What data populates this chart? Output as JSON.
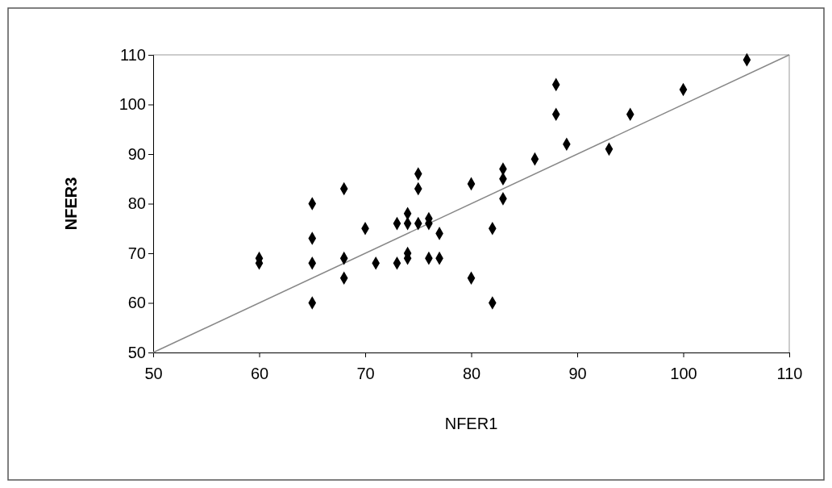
{
  "chart_data": {
    "type": "scatter",
    "xlabel": "NFER1",
    "ylabel": "NFER3",
    "xlim": [
      50,
      110
    ],
    "ylim": [
      50,
      110
    ],
    "xticks": [
      50,
      60,
      70,
      80,
      90,
      100,
      110
    ],
    "yticks": [
      50,
      60,
      70,
      80,
      90,
      100,
      110
    ],
    "grid": false,
    "marker": "diamond",
    "series": [
      {
        "color": "#000000",
        "x": [
          60,
          60,
          65,
          65,
          65,
          65,
          68,
          68,
          68,
          70,
          71,
          73,
          73,
          74,
          74,
          74,
          74,
          75,
          75,
          75,
          76,
          76,
          76,
          77,
          77,
          80,
          80,
          82,
          82,
          83,
          83,
          83,
          86,
          88,
          88,
          89,
          93,
          95,
          100,
          106
        ],
        "values": [
          69,
          68,
          80,
          73,
          68,
          60,
          83,
          69,
          65,
          75,
          68,
          76,
          68,
          78,
          76,
          70,
          69,
          86,
          83,
          76,
          77,
          76,
          69,
          74,
          69,
          84,
          65,
          75,
          60,
          87,
          85,
          81,
          89,
          104,
          98,
          92,
          91,
          98,
          103,
          109
        ]
      },
      {
        "type": "line",
        "color": "#888888",
        "marker": "none",
        "line_style": "solid",
        "x": [
          50,
          110
        ],
        "values": [
          50,
          110
        ]
      }
    ]
  }
}
